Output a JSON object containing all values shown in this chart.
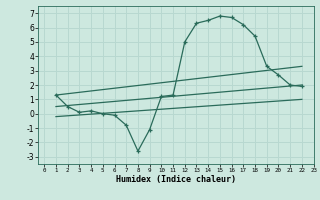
{
  "bg_color": "#cde8df",
  "grid_color": "#b8d8d0",
  "line_color": "#2a6b5a",
  "xlabel": "Humidex (Indice chaleur)",
  "xlim": [
    -0.5,
    23
  ],
  "ylim": [
    -3.5,
    7.5
  ],
  "xticks": [
    0,
    1,
    2,
    3,
    4,
    5,
    6,
    7,
    8,
    9,
    10,
    11,
    12,
    13,
    14,
    15,
    16,
    17,
    18,
    19,
    20,
    21,
    22,
    23
  ],
  "yticks": [
    -3,
    -2,
    -1,
    0,
    1,
    2,
    3,
    4,
    5,
    6,
    7
  ],
  "series1_x": [
    1,
    2,
    3,
    4,
    5,
    6,
    7,
    8,
    9,
    10,
    11,
    12,
    13,
    14,
    15,
    16,
    17,
    18,
    19,
    20,
    21,
    22
  ],
  "series1_y": [
    1.3,
    0.5,
    0.1,
    0.2,
    0.0,
    -0.1,
    -0.8,
    -2.6,
    -1.1,
    1.2,
    1.3,
    5.0,
    6.3,
    6.5,
    6.8,
    6.7,
    6.2,
    5.4,
    3.3,
    2.7,
    2.0,
    1.9
  ],
  "series2_x": [
    1,
    22
  ],
  "series2_y": [
    1.3,
    3.3
  ],
  "series3_x": [
    1,
    22
  ],
  "series3_y": [
    0.5,
    2.0
  ],
  "series4_x": [
    1,
    22
  ],
  "series4_y": [
    -0.2,
    1.0
  ]
}
